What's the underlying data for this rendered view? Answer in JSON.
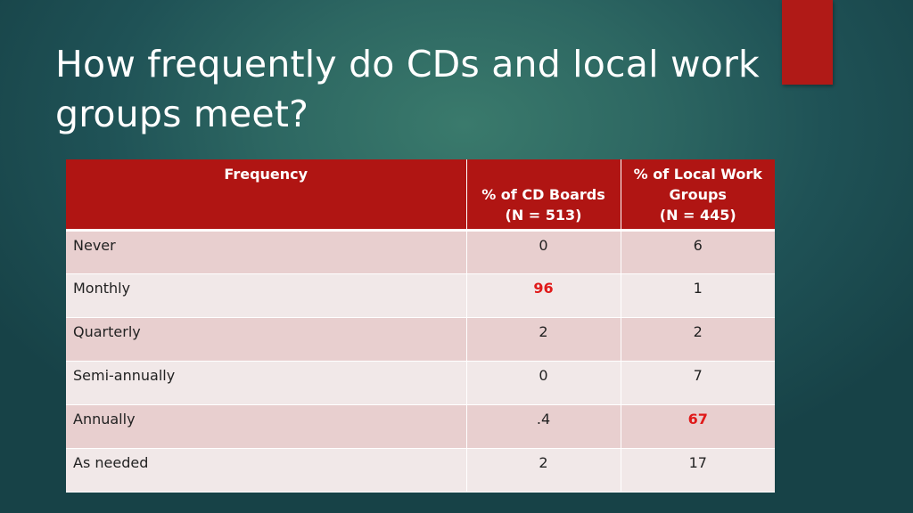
{
  "slide": {
    "title": "How frequently do CDs and local work groups meet?"
  },
  "colors": {
    "header_bg": "#b01513",
    "accent_bar": "#b01a17",
    "highlight_text": "#e01a1a"
  },
  "table": {
    "headers": {
      "frequency": "Frequency",
      "cd_boards": [
        "% of CD Boards",
        "(N = 513)"
      ],
      "local_work_groups": [
        "% of Local Work",
        "Groups",
        "(N = 445)"
      ]
    },
    "rows": [
      {
        "label": "Never",
        "cd": "0",
        "lwg": "6",
        "highlight": ""
      },
      {
        "label": "Monthly",
        "cd": "96",
        "lwg": "1",
        "highlight": "cd"
      },
      {
        "label": "Quarterly",
        "cd": "2",
        "lwg": "2",
        "highlight": ""
      },
      {
        "label": "Semi-annually",
        "cd": "0",
        "lwg": "7",
        "highlight": ""
      },
      {
        "label": "Annually",
        "cd": ".4",
        "lwg": "67",
        "highlight": "lwg"
      },
      {
        "label": "As needed",
        "cd": "2",
        "lwg": "17",
        "highlight": ""
      }
    ]
  }
}
